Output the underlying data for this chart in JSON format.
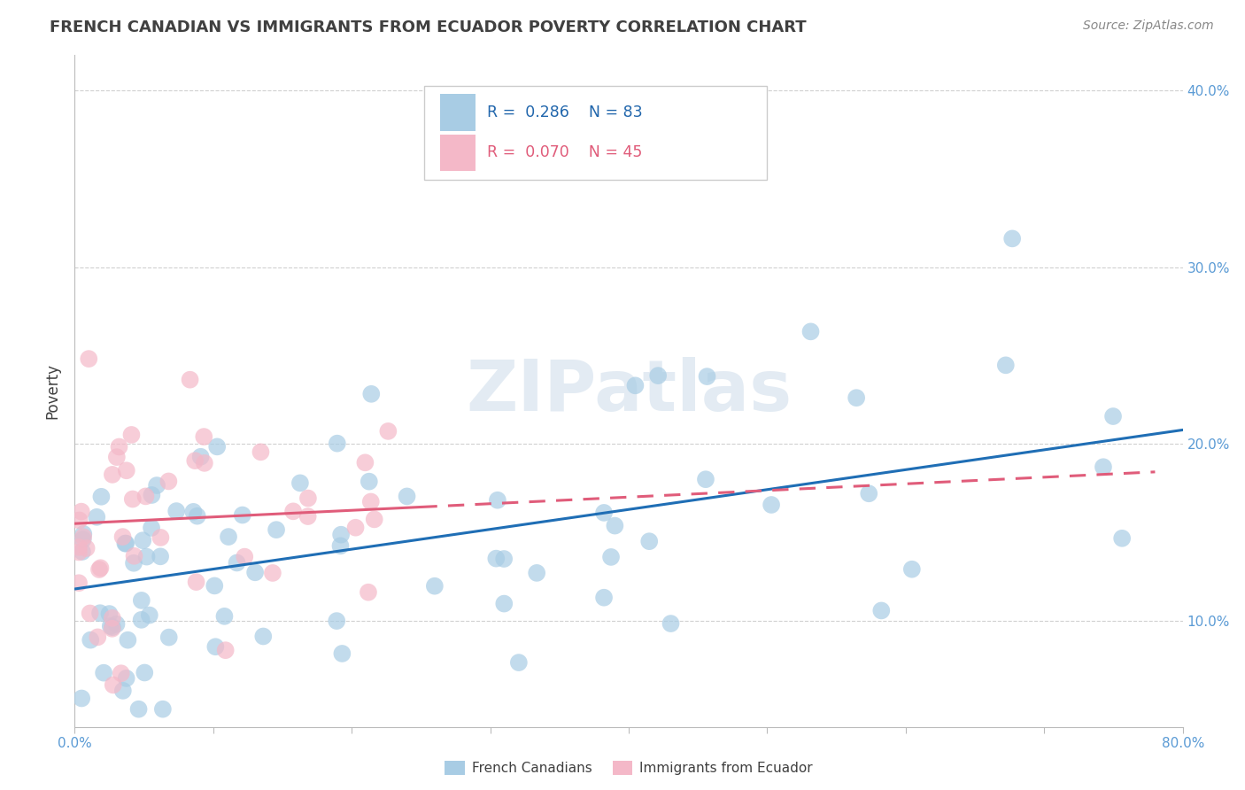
{
  "title": "FRENCH CANADIAN VS IMMIGRANTS FROM ECUADOR POVERTY CORRELATION CHART",
  "source": "Source: ZipAtlas.com",
  "ylabel": "Poverty",
  "xmin": 0.0,
  "xmax": 0.8,
  "ymin": 0.04,
  "ymax": 0.42,
  "yticks": [
    0.1,
    0.2,
    0.3,
    0.4
  ],
  "ytick_labels": [
    "10.0%",
    "20.0%",
    "30.0%",
    "40.0%"
  ],
  "legend_r1": "0.286",
  "legend_n1": "83",
  "legend_r2": "0.070",
  "legend_n2": "45",
  "color_blue": "#a8cce4",
  "color_pink": "#f4b8c8",
  "color_blue_line": "#1f6eb5",
  "color_pink_line": "#e05c7a",
  "color_title": "#404040",
  "color_source": "#888888",
  "watermark": "ZIPatlas",
  "background_color": "#ffffff",
  "xtick_color": "#5b9bd5",
  "ytick_color": "#5b9bd5",
  "fc_line_start_x": 0.0,
  "fc_line_start_y": 0.118,
  "fc_line_end_x": 0.8,
  "fc_line_end_y": 0.208,
  "ec_line_start_x": 0.0,
  "ec_line_start_y": 0.155,
  "ec_line_end_x": 0.8,
  "ec_line_end_y": 0.185
}
